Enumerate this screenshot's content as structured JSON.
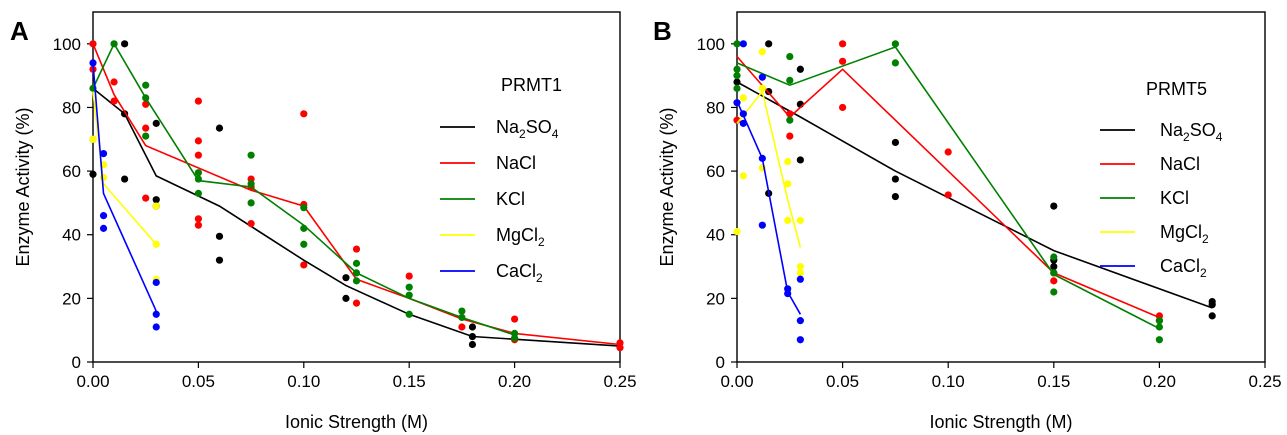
{
  "chart_data": [
    {
      "type": "line",
      "panel_label": "A",
      "title": "PRMT1",
      "xlabel": "Ionic Strength (M)",
      "ylabel": "Enzyme Activity (%)",
      "xlim": [
        0,
        0.25
      ],
      "ylim": [
        0,
        110
      ],
      "xticks": [
        "0.00",
        "0.05",
        "0.10",
        "0.15",
        "0.20",
        "0.25"
      ],
      "yticks": [
        "0",
        "20",
        "40",
        "60",
        "80",
        "100"
      ],
      "grid": false,
      "legend_position": "right",
      "series": [
        {
          "name": "Na2SO4",
          "legend_main": "Na",
          "legend_parts": [
            [
              "Na",
              false
            ],
            [
              "2",
              true
            ],
            [
              "SO",
              false
            ],
            [
              "4",
              true
            ]
          ],
          "color": "#000000",
          "line": [
            [
              0,
              86
            ],
            [
              0.015,
              78
            ],
            [
              0.03,
              58.5
            ],
            [
              0.06,
              49
            ],
            [
              0.1,
              32
            ],
            [
              0.12,
              24
            ],
            [
              0.15,
              15
            ],
            [
              0.18,
              8
            ],
            [
              0.25,
              5
            ]
          ],
          "points": [
            [
              0,
              59
            ],
            [
              0.015,
              100
            ],
            [
              0.015,
              78
            ],
            [
              0.015,
              57.5
            ],
            [
              0.03,
              75
            ],
            [
              0.03,
              51
            ],
            [
              0.03,
              49
            ],
            [
              0.06,
              73.5
            ],
            [
              0.06,
              39.5
            ],
            [
              0.06,
              32
            ],
            [
              0.12,
              26.5
            ],
            [
              0.12,
              20
            ],
            [
              0.18,
              11
            ],
            [
              0.18,
              8
            ],
            [
              0.18,
              5.5
            ]
          ]
        },
        {
          "name": "NaCl",
          "legend_parts": [
            [
              "NaCl",
              false
            ]
          ],
          "color": "#ff0000",
          "line": [
            [
              0,
              100
            ],
            [
              0.01,
              84
            ],
            [
              0.025,
              68
            ],
            [
              0.075,
              54
            ],
            [
              0.1,
              49
            ],
            [
              0.125,
              26
            ],
            [
              0.15,
              20
            ],
            [
              0.175,
              13.5
            ],
            [
              0.2,
              9
            ],
            [
              0.25,
              5.5
            ]
          ],
          "points": [
            [
              0,
              100
            ],
            [
              0,
              92
            ],
            [
              0.01,
              88
            ],
            [
              0.01,
              82
            ],
            [
              0.025,
              81
            ],
            [
              0.025,
              73.5
            ],
            [
              0.025,
              51.5
            ],
            [
              0.05,
              82
            ],
            [
              0.05,
              69.5
            ],
            [
              0.05,
              65
            ],
            [
              0.05,
              45
            ],
            [
              0.05,
              43
            ],
            [
              0.075,
              57.5
            ],
            [
              0.075,
              55
            ],
            [
              0.075,
              43.5
            ],
            [
              0.1,
              78
            ],
            [
              0.1,
              49.5
            ],
            [
              0.1,
              30.5
            ],
            [
              0.125,
              35.5
            ],
            [
              0.125,
              18.5
            ],
            [
              0.15,
              27
            ],
            [
              0.175,
              11
            ],
            [
              0.2,
              13.5
            ],
            [
              0.2,
              7
            ],
            [
              0.25,
              6
            ],
            [
              0.25,
              4.5
            ]
          ]
        },
        {
          "name": "KCl",
          "legend_parts": [
            [
              "KCl",
              false
            ]
          ],
          "color": "#008000",
          "line": [
            [
              0,
              86
            ],
            [
              0.01,
              100
            ],
            [
              0.025,
              83
            ],
            [
              0.05,
              57
            ],
            [
              0.075,
              55
            ],
            [
              0.1,
              43
            ],
            [
              0.125,
              28
            ],
            [
              0.15,
              20
            ],
            [
              0.175,
              14
            ],
            [
              0.2,
              8.5
            ]
          ],
          "points": [
            [
              0,
              86
            ],
            [
              0,
              70
            ],
            [
              0.01,
              100
            ],
            [
              0.025,
              87
            ],
            [
              0.025,
              83
            ],
            [
              0.025,
              71
            ],
            [
              0.05,
              59.5
            ],
            [
              0.05,
              57.5
            ],
            [
              0.05,
              53
            ],
            [
              0.075,
              65
            ],
            [
              0.075,
              56
            ],
            [
              0.075,
              50
            ],
            [
              0.1,
              48.5
            ],
            [
              0.1,
              42
            ],
            [
              0.1,
              37
            ],
            [
              0.125,
              31
            ],
            [
              0.125,
              28
            ],
            [
              0.125,
              25.5
            ],
            [
              0.15,
              23.5
            ],
            [
              0.15,
              21
            ],
            [
              0.15,
              15
            ],
            [
              0.175,
              16
            ],
            [
              0.175,
              14
            ],
            [
              0.2,
              9
            ],
            [
              0.2,
              7.5
            ]
          ]
        },
        {
          "name": "MgCl2",
          "legend_parts": [
            [
              "MgCl",
              false
            ],
            [
              "2",
              true
            ]
          ],
          "color": "#ffff00",
          "line": [
            [
              0,
              85
            ],
            [
              0.005,
              56
            ],
            [
              0.03,
              37
            ]
          ],
          "points": [
            [
              0,
              70
            ],
            [
              0.005,
              62
            ],
            [
              0.005,
              58
            ],
            [
              0.03,
              49
            ],
            [
              0.03,
              37
            ],
            [
              0.03,
              26
            ]
          ]
        },
        {
          "name": "CaCl2",
          "legend_parts": [
            [
              "CaCl",
              false
            ],
            [
              "2",
              true
            ]
          ],
          "color": "#0000ff",
          "line": [
            [
              0,
              94
            ],
            [
              0.005,
              53
            ],
            [
              0.03,
              16
            ]
          ],
          "points": [
            [
              0,
              94
            ],
            [
              0.005,
              65.5
            ],
            [
              0.005,
              46
            ],
            [
              0.005,
              42
            ],
            [
              0.03,
              25
            ],
            [
              0.03,
              15
            ],
            [
              0.03,
              11
            ]
          ]
        }
      ]
    },
    {
      "type": "line",
      "panel_label": "B",
      "title": "PRMT5",
      "xlabel": "Ionic Strength (M)",
      "ylabel": "Enzyme Activity (%)",
      "xlim": [
        0,
        0.25
      ],
      "ylim": [
        0,
        110
      ],
      "xticks": [
        "0.00",
        "0.05",
        "0.10",
        "0.15",
        "0.20",
        "0.25"
      ],
      "yticks": [
        "0",
        "20",
        "40",
        "60",
        "80",
        "100"
      ],
      "grid": false,
      "legend_position": "right",
      "series": [
        {
          "name": "Na2SO4",
          "legend_parts": [
            [
              "Na",
              false
            ],
            [
              "2",
              true
            ],
            [
              "SO",
              false
            ],
            [
              "4",
              true
            ]
          ],
          "color": "#000000",
          "line": [
            [
              0,
              88
            ],
            [
              0.03,
              77
            ],
            [
              0.075,
              60
            ],
            [
              0.15,
              35
            ],
            [
              0.225,
              17
            ]
          ],
          "points": [
            [
              0,
              88
            ],
            [
              0.015,
              100
            ],
            [
              0.015,
              85
            ],
            [
              0.015,
              53
            ],
            [
              0.03,
              92
            ],
            [
              0.03,
              81
            ],
            [
              0.03,
              63.5
            ],
            [
              0.075,
              69
            ],
            [
              0.075,
              57.5
            ],
            [
              0.075,
              52
            ],
            [
              0.15,
              49
            ],
            [
              0.15,
              32
            ],
            [
              0.15,
              30
            ],
            [
              0.225,
              19
            ],
            [
              0.225,
              18
            ],
            [
              0.225,
              14.5
            ]
          ]
        },
        {
          "name": "NaCl",
          "legend_parts": [
            [
              "NaCl",
              false
            ]
          ],
          "color": "#ff0000",
          "line": [
            [
              0,
              96
            ],
            [
              0.025,
              77
            ],
            [
              0.05,
              92
            ],
            [
              0.1,
              60
            ],
            [
              0.15,
              28
            ],
            [
              0.2,
              14
            ]
          ],
          "points": [
            [
              0,
              76
            ],
            [
              0.025,
              78
            ],
            [
              0.025,
              71
            ],
            [
              0.05,
              100
            ],
            [
              0.05,
              94.5
            ],
            [
              0.05,
              80
            ],
            [
              0.1,
              66
            ],
            [
              0.1,
              52.5
            ],
            [
              0.15,
              28
            ],
            [
              0.15,
              25.5
            ],
            [
              0.2,
              14.5
            ],
            [
              0.2,
              13
            ]
          ]
        },
        {
          "name": "KCl",
          "legend_parts": [
            [
              "KCl",
              false
            ]
          ],
          "color": "#008000",
          "line": [
            [
              0,
              94
            ],
            [
              0.025,
              87
            ],
            [
              0.075,
              99
            ],
            [
              0.15,
              27.5
            ],
            [
              0.2,
              10.5
            ]
          ],
          "points": [
            [
              0,
              100
            ],
            [
              0,
              92
            ],
            [
              0,
              90
            ],
            [
              0,
              86
            ],
            [
              0.025,
              96
            ],
            [
              0.025,
              88.5
            ],
            [
              0.025,
              76
            ],
            [
              0.075,
              100
            ],
            [
              0.075,
              94
            ],
            [
              0.15,
              33
            ],
            [
              0.15,
              28
            ],
            [
              0.15,
              22
            ],
            [
              0.2,
              13
            ],
            [
              0.2,
              11
            ],
            [
              0.2,
              7
            ]
          ]
        },
        {
          "name": "MgCl2",
          "legend_parts": [
            [
              "MgCl",
              false
            ],
            [
              "2",
              true
            ]
          ],
          "color": "#ffff00",
          "line": [
            [
              0,
              75
            ],
            [
              0.012,
              85
            ],
            [
              0.024,
              51
            ],
            [
              0.03,
              36
            ]
          ],
          "points": [
            [
              0,
              41
            ],
            [
              0.003,
              83
            ],
            [
              0.003,
              58.5
            ],
            [
              0.012,
              97.5
            ],
            [
              0.012,
              86
            ],
            [
              0.012,
              61
            ],
            [
              0.024,
              63
            ],
            [
              0.024,
              56
            ],
            [
              0.024,
              44.5
            ],
            [
              0.03,
              44.5
            ],
            [
              0.03,
              30
            ],
            [
              0.03,
              28
            ]
          ]
        },
        {
          "name": "CaCl2",
          "legend_parts": [
            [
              "CaCl",
              false
            ],
            [
              "2",
              true
            ]
          ],
          "color": "#0000ff",
          "line": [
            [
              0,
              82
            ],
            [
              0.012,
              64
            ],
            [
              0.024,
              22
            ],
            [
              0.03,
              15
            ]
          ],
          "points": [
            [
              0,
              81.5
            ],
            [
              0.003,
              100
            ],
            [
              0.003,
              78
            ],
            [
              0.003,
              75
            ],
            [
              0.012,
              89.5
            ],
            [
              0.012,
              64
            ],
            [
              0.012,
              43
            ],
            [
              0.024,
              23
            ],
            [
              0.024,
              21.5
            ],
            [
              0.03,
              26
            ],
            [
              0.03,
              13
            ],
            [
              0.03,
              7
            ]
          ]
        }
      ]
    }
  ]
}
